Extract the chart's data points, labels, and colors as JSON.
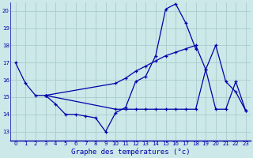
{
  "title": "Graphe des températures (°c)",
  "bg_color": "#cce8e8",
  "grid_color": "#aacccc",
  "line_color": "#0000aa",
  "ylim": [
    12.5,
    20.5
  ],
  "yticks": [
    13,
    14,
    15,
    16,
    17,
    18,
    19,
    20
  ],
  "xlim": [
    -0.5,
    23.5
  ],
  "xticks": [
    0,
    1,
    2,
    3,
    4,
    5,
    6,
    7,
    8,
    9,
    10,
    11,
    12,
    13,
    14,
    15,
    16,
    17,
    18,
    19,
    20,
    21,
    22,
    23
  ],
  "series": [
    {
      "x": [
        0,
        1,
        2,
        3
      ],
      "y": [
        17.0,
        15.8,
        15.1,
        15.1
      ]
    },
    {
      "x": [
        3,
        4,
        5,
        6,
        7,
        8,
        9,
        10,
        11,
        12,
        13,
        14,
        15,
        16,
        17,
        18
      ],
      "y": [
        15.1,
        14.6,
        14.0,
        14.0,
        13.9,
        13.8,
        13.0,
        14.1,
        14.4,
        15.9,
        16.2,
        17.4,
        20.1,
        20.4,
        19.3,
        17.8
      ]
    },
    {
      "x": [
        3,
        10,
        11,
        12,
        13,
        14,
        15,
        16,
        17,
        18,
        19,
        20,
        21,
        22,
        23
      ],
      "y": [
        15.1,
        15.8,
        16.1,
        16.5,
        16.8,
        17.1,
        17.4,
        17.6,
        17.8,
        18.0,
        16.6,
        18.0,
        15.9,
        15.3,
        14.2
      ]
    },
    {
      "x": [
        3,
        10,
        11,
        12,
        13,
        14,
        15,
        16,
        17,
        18,
        19,
        20,
        21,
        22,
        23
      ],
      "y": [
        15.1,
        14.3,
        14.3,
        14.3,
        14.3,
        14.3,
        14.3,
        14.3,
        14.3,
        14.3,
        16.6,
        14.3,
        14.3,
        15.9,
        14.2
      ]
    }
  ],
  "figsize": [
    3.2,
    2.0
  ],
  "dpi": 100
}
